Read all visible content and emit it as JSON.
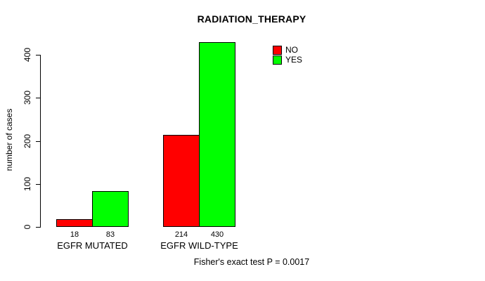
{
  "title": "RADIATION_THERAPY",
  "footer": "Fisher's exact test P = 0.0017",
  "colors": {
    "no": "#FF0000",
    "yes": "#00FF00",
    "axis": "#000000",
    "background": "#FFFFFF"
  },
  "chart_data": {
    "type": "bar",
    "title": "RADIATION_THERAPY",
    "xlabel": "",
    "ylabel": "number of cases",
    "categories": [
      "EGFR MUTATED",
      "EGFR WILD-TYPE"
    ],
    "series": [
      {
        "name": "NO",
        "color": "#FF0000",
        "values": [
          18,
          214
        ]
      },
      {
        "name": "YES",
        "color": "#00FF00",
        "values": [
          83,
          430
        ]
      }
    ],
    "bar_value_labels": [
      [
        "18",
        "83"
      ],
      [
        "214",
        "430"
      ]
    ],
    "yticks": [
      0,
      100,
      200,
      300,
      400
    ],
    "ylim": [
      0,
      430
    ],
    "grid": false,
    "legend_position": "top-right",
    "legend_entries": [
      "NO",
      "YES"
    ],
    "annotation": "Fisher's exact test P = 0.0017"
  }
}
